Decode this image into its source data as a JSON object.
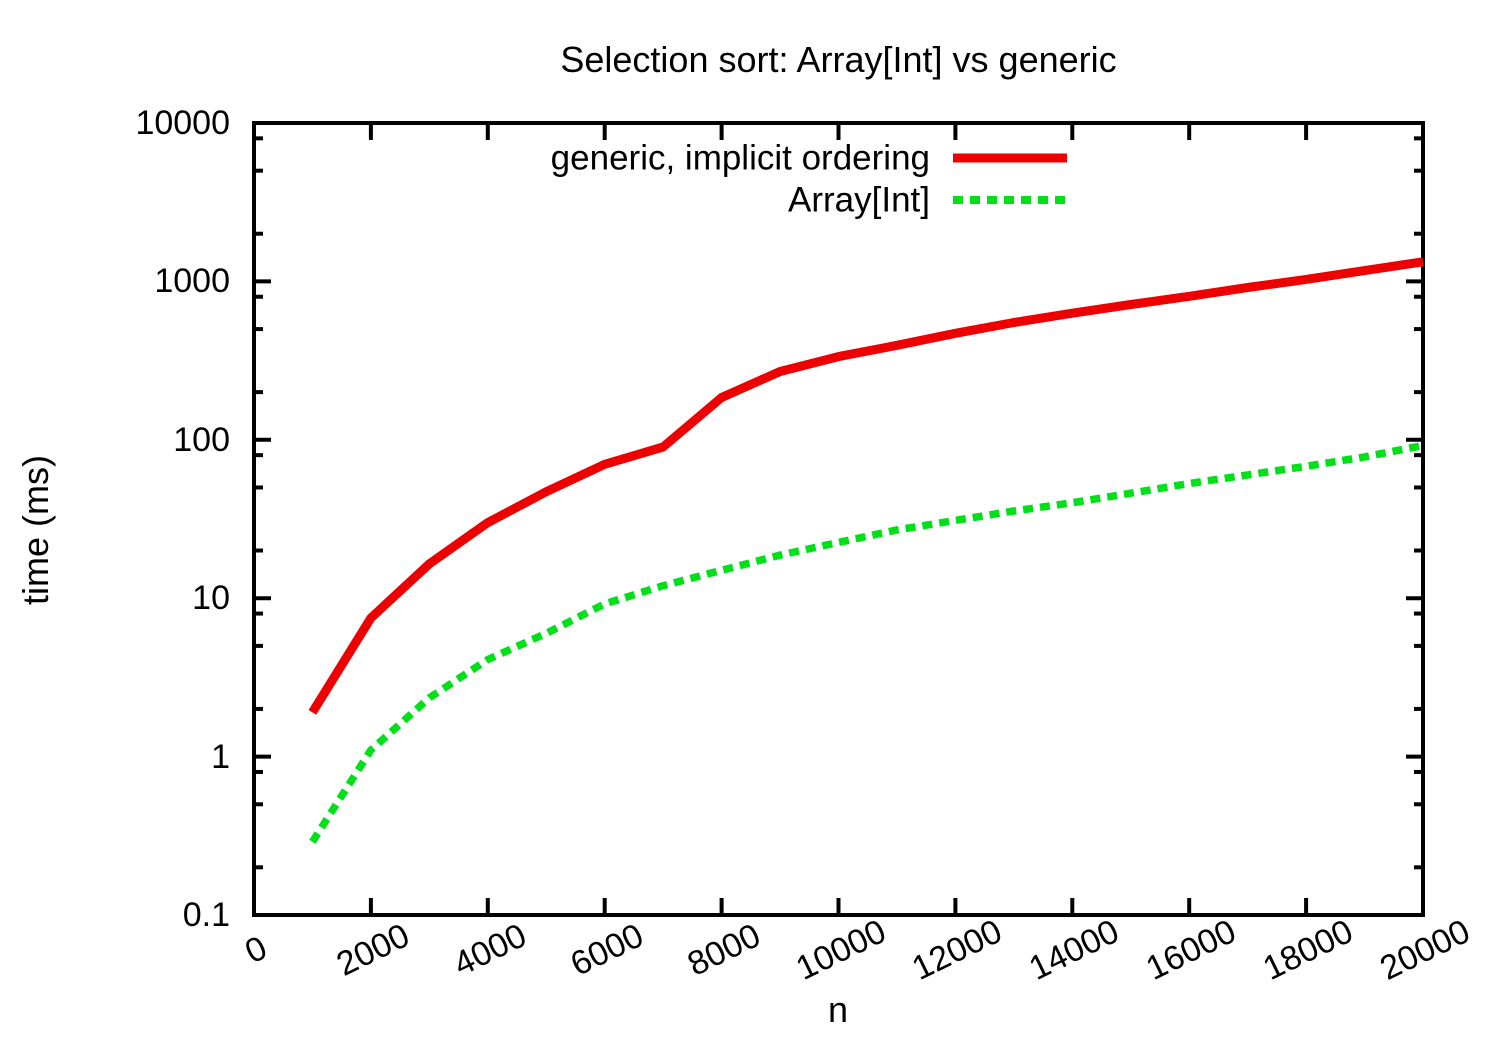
{
  "chart_data": {
    "type": "line",
    "title": "Selection sort: Array[Int] vs generic",
    "xlabel": "n",
    "ylabel": "time (ms)",
    "grid": false,
    "legend_position": "top-center-inside",
    "axis_color": "#000000",
    "background_color": "#ffffff",
    "x_axis": {
      "scale": "linear",
      "min": 0,
      "max": 20000,
      "tick_values": [
        0,
        2000,
        4000,
        6000,
        8000,
        10000,
        12000,
        14000,
        16000,
        18000,
        20000
      ],
      "tick_labels": [
        "0",
        "2000",
        "4000",
        "6000",
        "8000",
        "10000",
        "12000",
        "14000",
        "16000",
        "18000",
        "20000"
      ],
      "tick_label_rotation_deg": -26
    },
    "y_axis": {
      "scale": "log",
      "min": 0.1,
      "max": 10000,
      "tick_values": [
        0.1,
        1,
        10,
        100,
        1000,
        10000
      ],
      "tick_labels": [
        "0.1",
        "1",
        "10",
        "100",
        "1000",
        "10000"
      ],
      "minor_tick_multipliers": [
        2,
        5,
        8
      ]
    },
    "series": [
      {
        "name": "generic, implicit ordering",
        "color": "#ee0000",
        "style": "solid",
        "points": [
          [
            1000,
            1.9
          ],
          [
            2000,
            7.5
          ],
          [
            3000,
            16.5
          ],
          [
            4000,
            30
          ],
          [
            5000,
            47
          ],
          [
            6000,
            70
          ],
          [
            7000,
            90
          ],
          [
            8000,
            185
          ],
          [
            9000,
            270
          ],
          [
            10000,
            335
          ],
          [
            11000,
            395
          ],
          [
            12000,
            470
          ],
          [
            13000,
            550
          ],
          [
            14000,
            630
          ],
          [
            15000,
            715
          ],
          [
            16000,
            805
          ],
          [
            17000,
            915
          ],
          [
            18000,
            1030
          ],
          [
            19000,
            1170
          ],
          [
            20000,
            1330
          ]
        ]
      },
      {
        "name": "Array[Int]",
        "color": "#00e018",
        "style": "dashed",
        "points": [
          [
            1000,
            0.29
          ],
          [
            2000,
            1.1
          ],
          [
            3000,
            2.35
          ],
          [
            4000,
            4.1
          ],
          [
            5000,
            6.0
          ],
          [
            6000,
            9.2
          ],
          [
            7000,
            12
          ],
          [
            8000,
            15
          ],
          [
            9000,
            18.7
          ],
          [
            10000,
            22.5
          ],
          [
            11000,
            27
          ],
          [
            12000,
            31
          ],
          [
            13000,
            35.5
          ],
          [
            14000,
            40
          ],
          [
            15000,
            46
          ],
          [
            16000,
            53
          ],
          [
            17000,
            60
          ],
          [
            18000,
            68
          ],
          [
            19000,
            78
          ],
          [
            20000,
            92
          ]
        ]
      }
    ]
  }
}
